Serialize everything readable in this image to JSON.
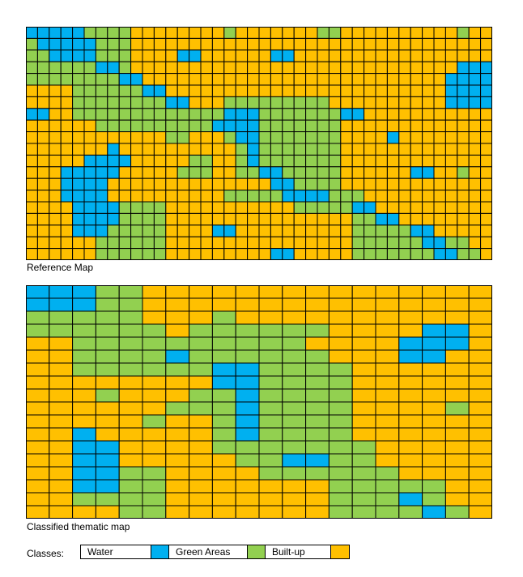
{
  "captions": {
    "reference": "Reference Map",
    "classified": "Classified thematic map"
  },
  "legend": {
    "label": "Classes:",
    "items": [
      {
        "name": "Water",
        "color": "#00B0F0"
      },
      {
        "name": "Green Areas",
        "color": "#92D050"
      },
      {
        "name": "Built-up",
        "color": "#FFC000"
      }
    ]
  },
  "maps": {
    "reference": {
      "class_codes": {
        "W": "Water",
        "G": "Green Areas",
        "B": "Built-up"
      },
      "rows": [
        "WWWWWGGGGBBBBBBBBGBBBBBBBGGBBBBBBBBBBGBBBB",
        "GWWWWWGGGBBBBBBBBBBBBBBBBBBBBBBBBBBBBBBBBB",
        "GGWWWWGGGBBBBWWBBBBBBWWBBBBBBBBBBBBBBBBBBB",
        "GGGGGGWWGBBBBBBBBBBBBBBBBBBBBBBBBBBBBWWWWWBB",
        "GGGGGGGGWWBBBBBBBBBBBBBBBBBBBBBBBBBBWWWWWBBB",
        "BBBBGGGGGGWWBBBBBBBBBBBBBBBBBBBBBBBBWWWWWBBB",
        "BBBBGGGGGGGGWWBBBGGGGGGGGGBBBBBBBBBBWWWWWGGB",
        "WWBBGGGGGGGGGGGGGWWWGGGGGGGWWBBBBBBBBBBBBBBB",
        "BBBBBBGGGGGGGGGGWWWWGGGGGGGBBBBBBBBBBBBBBBBB",
        "BBBBBBBBBBBBGGBBBGWWGGGGGGGBBBBWBBBBBBBBBBBB",
        "BBBBBBBWBBBBBBBBBBGWGGGGGGGBBBBBBBBBBBBBBBBB",
        "BBBBBWWWWBBBBBGGBBGWGGGGGGGBBBBBBBBBBBBBBBBB",
        "BBBWWWWWBBBBBGGGBBGGWWGGGGGBBBBBBWWBBGBBBBBB",
        "BBBWWWWBBBBBBBBBBBBBBWWGGGGBBBBBBBBBBBBBBBBB",
        "BBBWWWWBBBBBBBBBBGGGGGWWWWGGGBBBBBBBBBBBBGGB",
        "BBBBWWWWGGGGBBBBBBBBBBBGGGGGWWBBBBBBBBBBBBBB",
        "BBBBWWWWGGGGBBBBBBBBBBBBBBBBGGWWBBBBBBBBBBBB",
        "BBBBWWWGGGGGBBBBWWBBBBBBBBBBGGGGGWWBBBBBBBBB",
        "BBBBBBGGGGGGBBBBBBBBBBBBBBBBGGGGGGWWGGBBBBBB",
        "BBBBBBGGGGGGBBBBBBBBBWWBBBBBGGGGGGGWWGGBBBBB"
      ]
    },
    "classified": {
      "class_codes": {
        "W": "Water",
        "G": "Green Areas",
        "B": "Built-up"
      },
      "rows": [
        "WWWGGBBBBBBBBBBBBBBB",
        "WWWGGBBBBBBBBBBBBBBB",
        "GGGGGBBBGBBBBBBBBBBB",
        "GGGGGGBGGGGGGBBBBWWBB",
        "BBGGGGGGGGGGBBBBWWWBB",
        "BBGGGGWGGGGGGBBBWWBBB",
        "BBGGGGGGWWGGGGBBBBBBB",
        "BBBBBBBBWWGGGGBBBBBBB",
        "BBBGBBBGGWGGGGBBBBBBB",
        "BBBBBBGGGWGGGGBBBBGBB",
        "BBBBBGBBGWGGGGBBBBBBB",
        "BBWBBBBBGWGGGGBBBBBBB",
        "BBWWBBBBGGGGGGGBBBBBB",
        "BBWWBBBBBGGWWGGBBBBBB",
        "BBWWGGBBBBGGGGGGBBBBB",
        "BBWWGGBBBBBBBGGGGGBBB",
        "BBGGGGBBBBBBBGGGWGBBB",
        "BBBBGGBBBBBBBGGGGWGBBB"
      ]
    }
  }
}
